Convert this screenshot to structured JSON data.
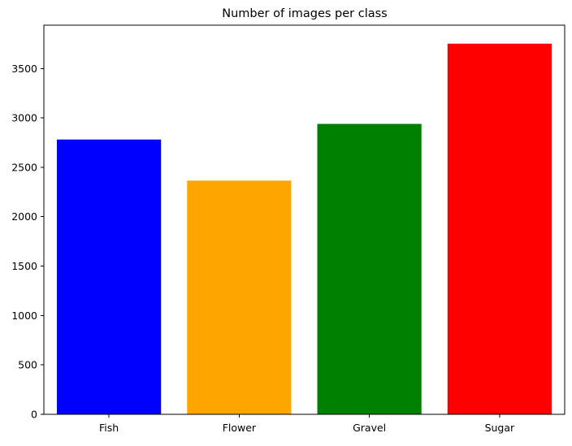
{
  "chart_data": {
    "type": "bar",
    "title": "Number of images per class",
    "xlabel": "",
    "ylabel": "",
    "categories": [
      "Fish",
      "Flower",
      "Gravel",
      "Sugar"
    ],
    "values": [
      2781,
      2365,
      2939,
      3751
    ],
    "colors": [
      "#0000ff",
      "#ffa500",
      "#008000",
      "#ff0000"
    ],
    "ylim": [
      0,
      3938
    ],
    "yticks": [
      0,
      500,
      1000,
      1500,
      2000,
      2500,
      3000,
      3500
    ],
    "ytick_labels": [
      "0",
      "500",
      "1000",
      "1500",
      "2000",
      "2500",
      "3000",
      "3500"
    ],
    "grid": false,
    "legend": "none"
  }
}
